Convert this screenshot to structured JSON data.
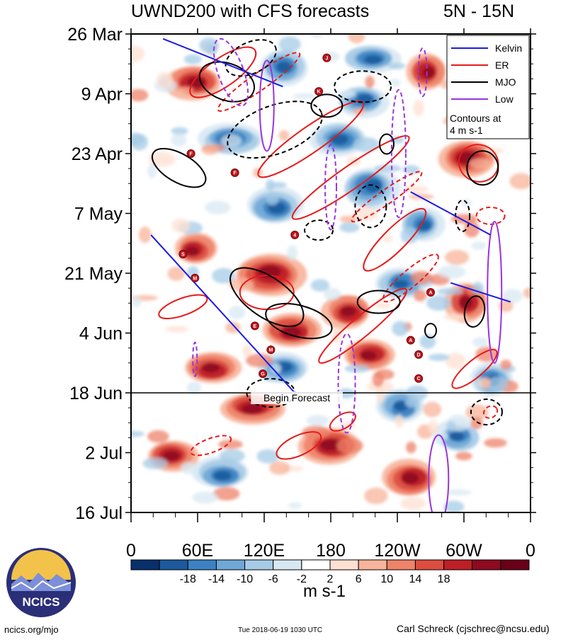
{
  "header": {
    "title_left": "UWND200 with CFS forecasts",
    "title_right": "5N - 15N"
  },
  "chart_data": {
    "type": "heatmap",
    "title": "UWND200 with CFS forecasts",
    "region": "5N - 15N",
    "x_ticks": [
      "0",
      "60E",
      "120E",
      "180",
      "120W",
      "60W",
      "0"
    ],
    "y_ticks": [
      "26 Mar",
      "9 Apr",
      "23 Apr",
      "7 May",
      "21 May",
      "4 Jun",
      "18 Jun",
      "2 Jul",
      "16 Jul"
    ],
    "y_range": [
      "26 Mar",
      "16 Jul"
    ],
    "colorbar_labels": [
      "-18",
      "-14",
      "-10",
      "-6",
      "-2",
      "2",
      "6",
      "10",
      "14",
      "18"
    ],
    "colorbar_colors": [
      "#08306b",
      "#1c5a9c",
      "#3c82c2",
      "#6fa8d6",
      "#a6cbe6",
      "#d8e8f3",
      "#ffffff",
      "#fde0d2",
      "#f7b49a",
      "#ee8369",
      "#dc4d3f",
      "#bd1f27",
      "#8e0a20",
      "#6a0018"
    ],
    "units": "m s-1",
    "legend": {
      "position": "top-right",
      "entries": [
        {
          "name": "Kelvin",
          "color": "#1a1ae6"
        },
        {
          "name": "ER",
          "color": "#e61a1a"
        },
        {
          "name": "MJO",
          "color": "#000000"
        },
        {
          "name": "Low",
          "color": "#9933dd"
        }
      ],
      "note": "Contours at\n4 m s-1"
    },
    "annotation": "Begin Forecast",
    "forecast_start": "18 Jun",
    "storm_markers": [
      "J",
      "K",
      "F",
      "F",
      "4",
      "S",
      "M",
      "E",
      "M",
      "G",
      "A",
      "A",
      "D",
      "C"
    ]
  },
  "footer": {
    "logo_text": "NCICS",
    "left": "ncics.org/mjo",
    "middle": "Tue 2018-06-19 1030 UTC",
    "right": "Carl Schreck (cjschrec@ncsu.edu)"
  }
}
